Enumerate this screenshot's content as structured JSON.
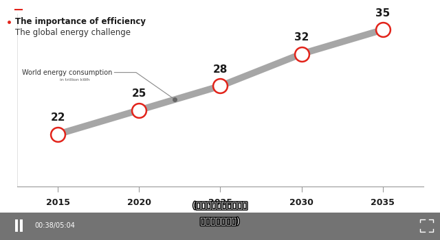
{
  "chart_data": {
    "type": "line",
    "title": "The importance of efficiency",
    "subtitle": "The global energy challenge",
    "annotation": {
      "text": "World energy consumption",
      "subtext": "in trillion kWh"
    },
    "x": [
      2015,
      2020,
      2025,
      2030,
      2035
    ],
    "values": [
      22,
      25,
      28,
      32,
      35
    ],
    "color": "#a6a6a6",
    "marker": "circle",
    "line_style": "solid",
    "data_labels": true,
    "xlim": [
      2012.5,
      2037.5
    ],
    "xticks": [
      2015,
      2020,
      2025,
      2030,
      2035
    ],
    "ylim": [
      15.5,
      37
    ],
    "yticks": [],
    "tick_labels": "x",
    "grid": false
  },
  "video_player": {
    "time": "00:38/05:04",
    "subtitles": [
      "(以万亿千瓦时为单位的",
      "世界能源消耗量)"
    ]
  }
}
